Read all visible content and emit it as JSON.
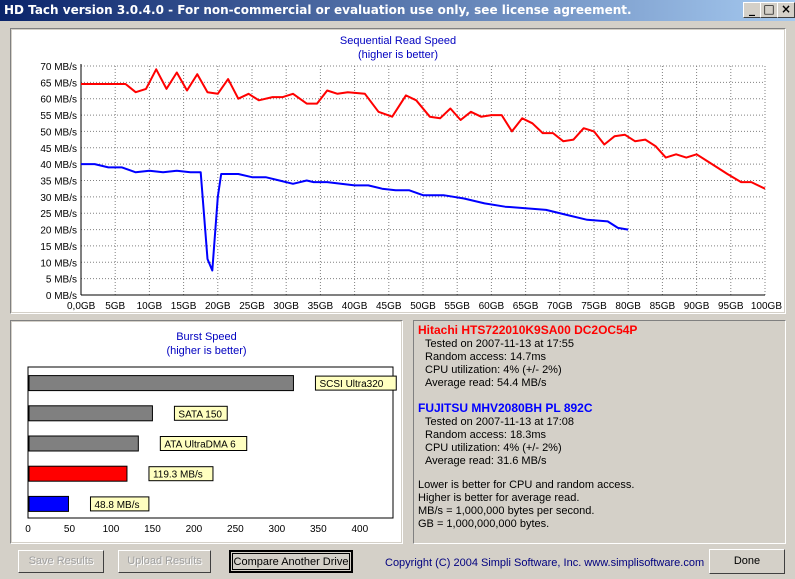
{
  "window": {
    "title": "HD Tach version 3.0.4.0  - For non-commercial or evaluation use only, see license agreement.",
    "controls": {
      "minimize": "_",
      "maximize": "□",
      "close": "×"
    }
  },
  "seq_chart": {
    "title_line1": "Sequential Read Speed",
    "title_line2": "(higher is better)"
  },
  "burst_chart": {
    "title_line1": "Burst Speed",
    "title_line2": "(higher is better)"
  },
  "chart_data": [
    {
      "type": "line",
      "title": "Sequential Read Speed (higher is better)",
      "x_unit": "GB",
      "y_unit": "MB/s",
      "xlim": [
        0,
        100
      ],
      "ylim": [
        0,
        70
      ],
      "x_ticks": [
        "0,0GB",
        "5GB",
        "10GB",
        "15GB",
        "20GB",
        "25GB",
        "30GB",
        "35GB",
        "40GB",
        "45GB",
        "50GB",
        "55GB",
        "60GB",
        "65GB",
        "70GB",
        "75GB",
        "80GB",
        "85GB",
        "90GB",
        "95GB",
        "100GB"
      ],
      "y_ticks": [
        "0 MB/s",
        "5 MB/s",
        "10 MB/s",
        "15 MB/s",
        "20 MB/s",
        "25 MB/s",
        "30 MB/s",
        "35 MB/s",
        "40 MB/s",
        "45 MB/s",
        "50 MB/s",
        "55 MB/s",
        "60 MB/s",
        "65 MB/s",
        "70 MB/s"
      ],
      "grid": true,
      "series": [
        {
          "name": "Hitachi HTS722010K9SA00 DC2OC54P",
          "color": "#ff0000",
          "points": [
            [
              0,
              64.5
            ],
            [
              5,
              64.5
            ],
            [
              6.5,
              64.5
            ],
            [
              8,
              62
            ],
            [
              9.5,
              63
            ],
            [
              11,
              69
            ],
            [
              12.5,
              63
            ],
            [
              14,
              68
            ],
            [
              15.5,
              62.5
            ],
            [
              17,
              67.5
            ],
            [
              18.5,
              62
            ],
            [
              20,
              61.5
            ],
            [
              21.5,
              66
            ],
            [
              23,
              60
            ],
            [
              24.5,
              61.5
            ],
            [
              26,
              59.5
            ],
            [
              28,
              60.5
            ],
            [
              29.5,
              60.5
            ],
            [
              31,
              61.5
            ],
            [
              33,
              58.5
            ],
            [
              34.5,
              58.5
            ],
            [
              36,
              62.5
            ],
            [
              37.5,
              61.5
            ],
            [
              39,
              62
            ],
            [
              41.5,
              61.5
            ],
            [
              43.5,
              56
            ],
            [
              45.5,
              54.5
            ],
            [
              47.5,
              61
            ],
            [
              49,
              59.5
            ],
            [
              51,
              54.5
            ],
            [
              52.5,
              54
            ],
            [
              54,
              57
            ],
            [
              55.5,
              53.5
            ],
            [
              57,
              56
            ],
            [
              58.5,
              54.5
            ],
            [
              60,
              55
            ],
            [
              61.5,
              55
            ],
            [
              63,
              50
            ],
            [
              64.5,
              54
            ],
            [
              66,
              52.5
            ],
            [
              67.5,
              49.5
            ],
            [
              69,
              49.5
            ],
            [
              70.5,
              47
            ],
            [
              72,
              47.5
            ],
            [
              73.5,
              51
            ],
            [
              75,
              50
            ],
            [
              76.5,
              46
            ],
            [
              78,
              48.5
            ],
            [
              79.5,
              49
            ],
            [
              81,
              47
            ],
            [
              82.5,
              47.5
            ],
            [
              84,
              45.5
            ],
            [
              85.5,
              42
            ],
            [
              87,
              43
            ],
            [
              88.5,
              42
            ],
            [
              90,
              43
            ],
            [
              91.5,
              41
            ],
            [
              93,
              39
            ],
            [
              94.5,
              37
            ],
            [
              96.5,
              34.5
            ],
            [
              98,
              34.5
            ],
            [
              100,
              32.5
            ]
          ]
        },
        {
          "name": "FUJITSU MHV2080BH PL 892C",
          "color": "#0000ff",
          "points": [
            [
              0,
              40
            ],
            [
              2,
              40
            ],
            [
              4,
              39
            ],
            [
              6,
              39
            ],
            [
              8,
              37.5
            ],
            [
              10,
              38
            ],
            [
              12,
              37.5
            ],
            [
              14,
              38
            ],
            [
              16,
              37.5
            ],
            [
              17.5,
              37.5
            ],
            [
              18.5,
              11
            ],
            [
              19.2,
              7.5
            ],
            [
              20,
              30
            ],
            [
              20.5,
              37
            ],
            [
              23,
              37
            ],
            [
              25,
              36
            ],
            [
              27,
              36
            ],
            [
              29,
              35
            ],
            [
              31,
              34
            ],
            [
              33,
              35
            ],
            [
              34,
              34.5
            ],
            [
              36,
              34.5
            ],
            [
              38,
              34
            ],
            [
              40,
              33.5
            ],
            [
              42,
              33.5
            ],
            [
              44,
              32.5
            ],
            [
              46,
              32
            ],
            [
              48,
              32
            ],
            [
              50,
              30.5
            ],
            [
              53,
              30.5
            ],
            [
              56,
              29.5
            ],
            [
              59,
              28
            ],
            [
              62,
              27
            ],
            [
              65,
              26.5
            ],
            [
              68,
              26
            ],
            [
              71,
              24.5
            ],
            [
              74,
              23
            ],
            [
              77,
              22.5
            ],
            [
              78.5,
              20.5
            ],
            [
              80,
              20
            ]
          ]
        }
      ]
    },
    {
      "type": "bar",
      "orientation": "horizontal",
      "title": "Burst Speed (higher is better)",
      "xlim": [
        0,
        440
      ],
      "x_ticks": [
        "0",
        "50",
        "100",
        "150",
        "200",
        "250",
        "300",
        "350",
        "400"
      ],
      "bars": [
        {
          "label": "SCSI Ultra320",
          "value": 320,
          "color": "#808080"
        },
        {
          "label": "SATA 150",
          "value": 150,
          "color": "#808080"
        },
        {
          "label": "ATA UltraDMA 6",
          "value": 133,
          "color": "#808080"
        },
        {
          "label": "119.3 MB/s",
          "value": 119.3,
          "color": "#ff0000"
        },
        {
          "label": "48.8 MB/s",
          "value": 48.8,
          "color": "#0000ff"
        }
      ]
    }
  ],
  "results": {
    "drive1": {
      "name": "Hitachi HTS722010K9SA00 DC2OC54P",
      "color": "#ff0000",
      "lines": [
        "Tested on 2007-11-13 at 17:55",
        "Random access: 14.7ms",
        "CPU utilization: 4% (+/- 2%)",
        "Average read: 54.4 MB/s"
      ]
    },
    "drive2": {
      "name": "FUJITSU MHV2080BH PL 892C",
      "color": "#0000ff",
      "lines": [
        "Tested on 2007-11-13 at 17:08",
        "Random access: 18.3ms",
        "CPU utilization: 4% (+/- 2%)",
        "Average read: 31.6 MB/s"
      ]
    },
    "notes": [
      "Lower is better for CPU and random access.",
      "Higher is better for average read.",
      "MB/s = 1,000,000 bytes per second.",
      "GB = 1,000,000,000 bytes."
    ]
  },
  "buttons": {
    "save": "Save Results",
    "upload": "Upload Results",
    "compare": "Compare Another Drive",
    "done": "Done"
  },
  "copyright": "Copyright (C) 2004 Simpli Software, Inc. www.simplisoftware.com"
}
